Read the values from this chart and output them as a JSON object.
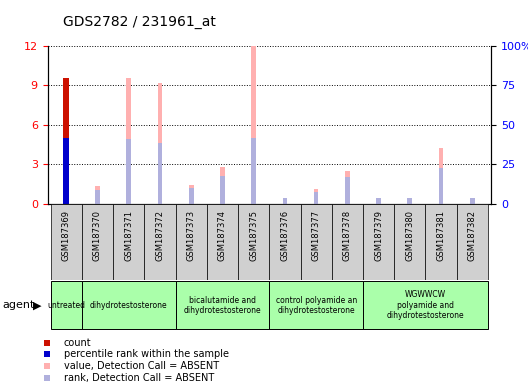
{
  "title": "GDS2782 / 231961_at",
  "samples": [
    "GSM187369",
    "GSM187370",
    "GSM187371",
    "GSM187372",
    "GSM187373",
    "GSM187374",
    "GSM187375",
    "GSM187376",
    "GSM187377",
    "GSM187378",
    "GSM187379",
    "GSM187380",
    "GSM187381",
    "GSM187382"
  ],
  "count_values": [
    9.6,
    0,
    0,
    0,
    0,
    0,
    0,
    0,
    0,
    0,
    0,
    0,
    0,
    0
  ],
  "percentile_rank_values": [
    5.0,
    0,
    0,
    0,
    0,
    0,
    0,
    0,
    0,
    0,
    0,
    0,
    0,
    0
  ],
  "value_absent": [
    0,
    1.3,
    9.6,
    9.2,
    1.4,
    2.8,
    12.0,
    0,
    1.1,
    2.5,
    0,
    0.4,
    4.2,
    0
  ],
  "rank_absent": [
    0,
    1.0,
    4.9,
    4.6,
    1.2,
    2.1,
    5.0,
    0.4,
    0.9,
    2.0,
    0.4,
    0.4,
    2.7,
    0.4
  ],
  "ylim_left": [
    0,
    12
  ],
  "ylim_right": [
    0,
    100
  ],
  "yticks_left": [
    0,
    3,
    6,
    9,
    12
  ],
  "yticks_right": [
    0,
    25,
    50,
    75,
    100
  ],
  "ytick_labels_right": [
    "0",
    "25",
    "50",
    "75",
    "100%"
  ],
  "agent_groups": [
    {
      "label": "untreated",
      "start": 0,
      "end": 0
    },
    {
      "label": "dihydrotestosterone",
      "start": 1,
      "end": 3
    },
    {
      "label": "bicalutamide and\ndihydrotestosterone",
      "start": 4,
      "end": 6
    },
    {
      "label": "control polyamide an\ndihydrotestosterone",
      "start": 7,
      "end": 9
    },
    {
      "label": "WGWWCW\npolyamide and\ndihydrotestosterone",
      "start": 10,
      "end": 13
    }
  ],
  "color_count": "#cc1100",
  "color_percentile": "#0000cc",
  "color_value_absent": "#ffb0b0",
  "color_rank_absent": "#b0b0dd",
  "bar_width": 0.15,
  "main_bg": "#ffffff",
  "plot_bg": "#ffffff",
  "sample_area_bg": "#d0d0d0",
  "agent_group_bg": "#aaffaa",
  "legend_items": [
    {
      "color": "#cc1100",
      "label": "count"
    },
    {
      "color": "#0000cc",
      "label": "percentile rank within the sample"
    },
    {
      "color": "#ffb0b0",
      "label": "value, Detection Call = ABSENT"
    },
    {
      "color": "#b0b0dd",
      "label": "rank, Detection Call = ABSENT"
    }
  ]
}
